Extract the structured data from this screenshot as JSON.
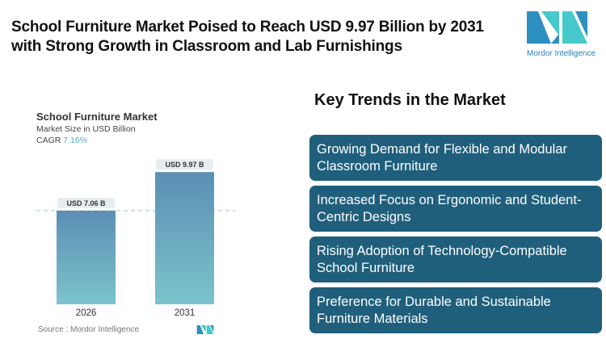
{
  "header": {
    "title": "School Furniture Market Poised to Reach USD 9.97 Billion by 2031 with Strong Growth in Classroom and Lab Furnishings",
    "logo_text": "Mordor Intelligence"
  },
  "chart_data": {
    "type": "bar",
    "title": "School Furniture Market",
    "subtitle": "Market Size in USD Billion",
    "cagr_label": "CAGR",
    "cagr_value": "7.16%",
    "categories": [
      "2026",
      "2031"
    ],
    "values": [
      7.06,
      9.97
    ],
    "data_labels": [
      "USD 7.06 B",
      "USD 9.97 B"
    ],
    "ylim": [
      0,
      9.97
    ],
    "grid": false,
    "colors": {
      "top": "#5b8fb5",
      "bottom": "#7cc3cc"
    }
  },
  "source": "Source :  Mordor Intelligence",
  "trends": {
    "title": "Key Trends in the Market",
    "items": [
      "Growing Demand for Flexible and Modular Classroom Furniture",
      "Increased Focus on Ergonomic and Student-Centric Designs",
      "Rising Adoption of Technology-Compatible School Furniture",
      "Preference for Durable and Sustainable Furniture Materials"
    ]
  }
}
